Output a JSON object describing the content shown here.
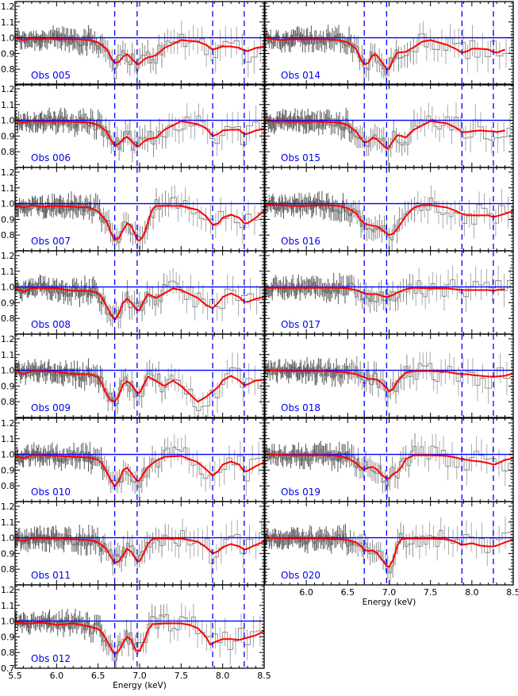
{
  "chart_data": {
    "type": "line",
    "title": "",
    "layout": "multi-panel grid: left column 8 panels, right column 7 panels, shared x axis per column",
    "xlabel": "Energy (keV)",
    "ylabel": "",
    "xlim": [
      5.5,
      8.5
    ],
    "ylim": [
      0.7,
      1.23
    ],
    "x_ticks": [
      "5.5",
      "6.0",
      "6.5",
      "7.0",
      "7.5",
      "8.0",
      "8.5"
    ],
    "x_ticks_right": [
      "6.0",
      "6.5",
      "7.0",
      "7.5",
      "8.0",
      "8.5"
    ],
    "y_ticks": [
      "0.7",
      "0.8",
      "0.9",
      "1.0",
      "1.1",
      "1.2"
    ],
    "reference_line": {
      "y": 1.0,
      "color": "#0000ff"
    },
    "dashed_lines_keV": [
      6.7,
      6.97,
      7.88,
      8.26
    ],
    "colors": {
      "model": "#ff0000",
      "reference": "#0000ff",
      "dashed": "#0000ff",
      "data": "#888888",
      "label": "#0000ee"
    },
    "series_legend": [
      "data (grey histogram with error bars)",
      "model (red)",
      "unity continuum (blue)"
    ],
    "panels": [
      {
        "col": 0,
        "row": 0,
        "label": "Obs 005",
        "model_x": [
          5.5,
          5.6,
          5.7,
          5.8,
          5.9,
          6.0,
          6.2,
          6.4,
          6.5,
          6.6,
          6.65,
          6.7,
          6.75,
          6.8,
          6.85,
          6.9,
          6.97,
          7.0,
          7.05,
          7.1,
          7.15,
          7.2,
          7.3,
          7.5,
          7.7,
          7.8,
          7.88,
          7.95,
          8.0,
          8.1,
          8.2,
          8.26,
          8.3,
          8.4,
          8.5
        ],
        "model_y": [
          1.0,
          0.985,
          0.995,
          0.99,
          0.995,
          0.99,
          0.99,
          0.985,
          0.97,
          0.93,
          0.88,
          0.84,
          0.845,
          0.88,
          0.895,
          0.87,
          0.83,
          0.835,
          0.86,
          0.875,
          0.88,
          0.89,
          0.935,
          0.985,
          0.975,
          0.955,
          0.925,
          0.935,
          0.945,
          0.945,
          0.935,
          0.92,
          0.915,
          0.935,
          0.945
        ]
      },
      {
        "col": 0,
        "row": 1,
        "label": "Obs 006",
        "model_x": [
          5.5,
          5.6,
          5.7,
          5.8,
          6.0,
          6.2,
          6.4,
          6.5,
          6.6,
          6.65,
          6.7,
          6.75,
          6.8,
          6.85,
          6.9,
          6.97,
          7.0,
          7.05,
          7.1,
          7.2,
          7.3,
          7.5,
          7.7,
          7.8,
          7.88,
          7.95,
          8.0,
          8.1,
          8.2,
          8.26,
          8.3,
          8.4,
          8.5
        ],
        "model_y": [
          1.0,
          0.985,
          0.995,
          0.99,
          0.99,
          0.99,
          0.985,
          0.97,
          0.93,
          0.88,
          0.84,
          0.85,
          0.88,
          0.895,
          0.87,
          0.83,
          0.84,
          0.865,
          0.88,
          0.89,
          0.94,
          0.995,
          0.975,
          0.95,
          0.9,
          0.915,
          0.935,
          0.94,
          0.94,
          0.91,
          0.915,
          0.935,
          0.945
        ]
      },
      {
        "col": 0,
        "row": 2,
        "label": "Obs 007",
        "model_x": [
          5.5,
          5.6,
          5.7,
          5.8,
          6.0,
          6.2,
          6.4,
          6.5,
          6.6,
          6.65,
          6.7,
          6.75,
          6.8,
          6.85,
          6.9,
          6.97,
          7.0,
          7.05,
          7.1,
          7.15,
          7.2,
          7.5,
          7.7,
          7.8,
          7.88,
          7.95,
          8.0,
          8.1,
          8.2,
          8.26,
          8.3,
          8.4,
          8.5
        ],
        "model_y": [
          0.99,
          0.975,
          0.99,
          0.98,
          0.985,
          0.98,
          0.975,
          0.95,
          0.89,
          0.82,
          0.77,
          0.78,
          0.83,
          0.875,
          0.86,
          0.77,
          0.765,
          0.8,
          0.88,
          0.96,
          0.985,
          0.985,
          0.96,
          0.92,
          0.865,
          0.875,
          0.91,
          0.93,
          0.91,
          0.875,
          0.875,
          0.91,
          0.955
        ]
      },
      {
        "col": 0,
        "row": 3,
        "label": "Obs 008",
        "model_x": [
          5.5,
          5.6,
          5.7,
          5.8,
          6.0,
          6.2,
          6.4,
          6.5,
          6.55,
          6.6,
          6.65,
          6.7,
          6.75,
          6.8,
          6.85,
          6.9,
          6.97,
          7.0,
          7.05,
          7.1,
          7.2,
          7.3,
          7.4,
          7.5,
          7.7,
          7.8,
          7.88,
          7.95,
          8.0,
          8.1,
          8.2,
          8.26,
          8.3,
          8.4,
          8.5
        ],
        "model_y": [
          0.99,
          0.97,
          0.99,
          0.995,
          0.99,
          0.975,
          0.975,
          0.96,
          0.93,
          0.88,
          0.83,
          0.79,
          0.83,
          0.9,
          0.925,
          0.9,
          0.85,
          0.855,
          0.91,
          0.955,
          0.93,
          0.96,
          0.99,
          0.98,
          0.93,
          0.885,
          0.865,
          0.9,
          0.935,
          0.96,
          0.935,
          0.905,
          0.905,
          0.925,
          0.935
        ]
      },
      {
        "col": 0,
        "row": 4,
        "label": "Obs 009",
        "model_x": [
          5.5,
          5.6,
          5.7,
          5.8,
          6.0,
          6.2,
          6.4,
          6.5,
          6.55,
          6.6,
          6.65,
          6.7,
          6.75,
          6.8,
          6.85,
          6.9,
          6.97,
          7.0,
          7.05,
          7.1,
          7.2,
          7.3,
          7.4,
          7.5,
          7.6,
          7.7,
          7.8,
          7.88,
          7.95,
          8.0,
          8.1,
          8.2,
          8.26,
          8.3,
          8.4,
          8.5
        ],
        "model_y": [
          1.0,
          0.975,
          0.995,
          0.995,
          0.99,
          0.975,
          0.975,
          0.955,
          0.91,
          0.85,
          0.81,
          0.8,
          0.84,
          0.91,
          0.93,
          0.91,
          0.855,
          0.855,
          0.91,
          0.96,
          0.93,
          0.9,
          0.935,
          0.9,
          0.85,
          0.8,
          0.83,
          0.865,
          0.895,
          0.935,
          0.965,
          0.935,
          0.905,
          0.91,
          0.935,
          0.94
        ]
      },
      {
        "col": 0,
        "row": 5,
        "label": "Obs 010",
        "model_x": [
          5.5,
          5.6,
          5.7,
          5.8,
          6.0,
          6.2,
          6.4,
          6.5,
          6.55,
          6.6,
          6.65,
          6.7,
          6.75,
          6.8,
          6.85,
          6.9,
          6.97,
          7.0,
          7.05,
          7.1,
          7.2,
          7.3,
          7.5,
          7.7,
          7.8,
          7.88,
          7.95,
          8.0,
          8.1,
          8.2,
          8.26,
          8.3,
          8.4,
          8.5
        ],
        "model_y": [
          0.995,
          0.975,
          0.995,
          0.995,
          0.99,
          0.985,
          0.98,
          0.965,
          0.94,
          0.89,
          0.84,
          0.795,
          0.83,
          0.9,
          0.915,
          0.88,
          0.83,
          0.835,
          0.88,
          0.92,
          0.96,
          0.985,
          0.99,
          0.95,
          0.905,
          0.865,
          0.895,
          0.935,
          0.955,
          0.935,
          0.89,
          0.895,
          0.925,
          0.95
        ]
      },
      {
        "col": 0,
        "row": 6,
        "label": "Obs 011",
        "model_x": [
          5.5,
          5.6,
          5.7,
          5.8,
          6.0,
          6.2,
          6.4,
          6.5,
          6.6,
          6.65,
          6.7,
          6.75,
          6.8,
          6.85,
          6.9,
          6.97,
          7.0,
          7.05,
          7.1,
          7.15,
          7.2,
          7.5,
          7.7,
          7.8,
          7.88,
          7.95,
          8.0,
          8.1,
          8.2,
          8.26,
          8.3,
          8.4,
          8.5
        ],
        "model_y": [
          0.995,
          0.98,
          0.995,
          0.995,
          0.995,
          0.99,
          0.985,
          0.97,
          0.93,
          0.88,
          0.84,
          0.85,
          0.89,
          0.93,
          0.91,
          0.85,
          0.85,
          0.9,
          0.96,
          0.99,
          0.995,
          0.995,
          0.975,
          0.94,
          0.9,
          0.915,
          0.94,
          0.96,
          0.945,
          0.925,
          0.93,
          0.955,
          0.975
        ]
      },
      {
        "col": 0,
        "row": 7,
        "label": "Obs 012",
        "model_x": [
          5.5,
          5.6,
          5.7,
          5.8,
          5.9,
          6.0,
          6.2,
          6.4,
          6.5,
          6.55,
          6.6,
          6.65,
          6.7,
          6.75,
          6.8,
          6.85,
          6.9,
          6.95,
          7.0,
          7.05,
          7.1,
          7.15,
          7.3,
          7.5,
          7.6,
          7.7,
          7.8,
          7.85,
          7.9,
          8.0,
          8.1,
          8.2,
          8.3,
          8.4,
          8.5
        ],
        "model_y": [
          0.995,
          0.985,
          0.985,
          0.99,
          0.985,
          0.975,
          0.985,
          0.965,
          0.95,
          0.925,
          0.88,
          0.83,
          0.79,
          0.81,
          0.86,
          0.9,
          0.88,
          0.815,
          0.81,
          0.865,
          0.94,
          0.98,
          0.985,
          0.985,
          0.975,
          0.955,
          0.9,
          0.85,
          0.865,
          0.885,
          0.885,
          0.88,
          0.895,
          0.91,
          0.935
        ]
      },
      {
        "col": 1,
        "row": 0,
        "label": "Obs 014",
        "model_x": [
          5.5,
          5.6,
          5.7,
          5.8,
          6.0,
          6.2,
          6.4,
          6.5,
          6.6,
          6.65,
          6.7,
          6.75,
          6.8,
          6.85,
          6.9,
          6.97,
          7.0,
          7.05,
          7.1,
          7.2,
          7.3,
          7.4,
          7.5,
          7.6,
          7.7,
          7.8,
          7.88,
          7.95,
          8.0,
          8.1,
          8.2,
          8.26,
          8.3,
          8.4
        ],
        "model_y": [
          1.0,
          0.99,
          0.985,
          0.99,
          0.99,
          0.99,
          0.985,
          0.97,
          0.93,
          0.87,
          0.83,
          0.84,
          0.89,
          0.89,
          0.855,
          0.8,
          0.8,
          0.86,
          0.905,
          0.91,
          0.94,
          0.975,
          0.985,
          0.97,
          0.955,
          0.93,
          0.905,
          0.915,
          0.93,
          0.93,
          0.925,
          0.91,
          0.905,
          0.925
        ]
      },
      {
        "col": 1,
        "row": 1,
        "label": "Obs 015",
        "model_x": [
          5.5,
          5.6,
          5.7,
          5.8,
          6.0,
          6.2,
          6.4,
          6.5,
          6.6,
          6.65,
          6.7,
          6.75,
          6.8,
          6.85,
          6.9,
          6.97,
          7.0,
          7.05,
          7.1,
          7.15,
          7.2,
          7.3,
          7.5,
          7.7,
          7.8,
          7.88,
          7.95,
          8.0,
          8.1,
          8.2,
          8.26,
          8.3,
          8.4
        ],
        "model_y": [
          1.0,
          0.99,
          0.995,
          0.99,
          0.99,
          0.99,
          0.985,
          0.97,
          0.93,
          0.89,
          0.86,
          0.865,
          0.89,
          0.88,
          0.855,
          0.82,
          0.83,
          0.87,
          0.905,
          0.9,
          0.89,
          0.94,
          0.995,
          0.98,
          0.955,
          0.925,
          0.925,
          0.93,
          0.935,
          0.93,
          0.93,
          0.925,
          0.935
        ]
      },
      {
        "col": 1,
        "row": 2,
        "label": "Obs 016",
        "model_x": [
          5.5,
          5.6,
          5.7,
          5.8,
          6.0,
          6.2,
          6.4,
          6.5,
          6.6,
          6.65,
          6.7,
          6.75,
          6.8,
          6.85,
          6.9,
          6.97,
          7.0,
          7.05,
          7.1,
          7.2,
          7.3,
          7.4,
          7.5,
          7.7,
          7.8,
          7.88,
          7.95,
          8.0,
          8.1,
          8.2,
          8.26,
          8.3,
          8.4,
          8.5
        ],
        "model_y": [
          0.995,
          0.99,
          0.99,
          0.985,
          0.985,
          0.99,
          0.985,
          0.97,
          0.94,
          0.9,
          0.875,
          0.865,
          0.86,
          0.855,
          0.84,
          0.81,
          0.8,
          0.81,
          0.84,
          0.92,
          0.975,
          0.99,
          0.99,
          0.975,
          0.955,
          0.935,
          0.925,
          0.925,
          0.925,
          0.925,
          0.915,
          0.92,
          0.935,
          0.955
        ]
      },
      {
        "col": 1,
        "row": 3,
        "label": "Obs 017",
        "model_x": [
          5.5,
          5.8,
          6.0,
          6.2,
          6.4,
          6.5,
          6.6,
          6.65,
          6.7,
          6.75,
          6.8,
          6.85,
          6.9,
          6.97,
          7.0,
          7.05,
          7.1,
          7.2,
          7.3,
          7.5,
          7.7,
          7.8,
          7.88,
          7.95,
          8.0,
          8.1,
          8.2,
          8.26,
          8.3,
          8.4
        ],
        "model_y": [
          0.995,
          0.995,
          0.995,
          0.995,
          0.995,
          0.99,
          0.98,
          0.97,
          0.96,
          0.955,
          0.955,
          0.955,
          0.945,
          0.935,
          0.94,
          0.95,
          0.965,
          0.985,
          0.995,
          0.99,
          0.99,
          0.985,
          0.98,
          0.98,
          0.98,
          0.98,
          0.98,
          0.975,
          0.98,
          0.985
        ]
      },
      {
        "col": 1,
        "row": 4,
        "label": "Obs 018",
        "model_x": [
          5.5,
          5.8,
          6.0,
          6.2,
          6.4,
          6.5,
          6.6,
          6.65,
          6.7,
          6.75,
          6.8,
          6.85,
          6.9,
          6.97,
          7.0,
          7.05,
          7.1,
          7.2,
          7.3,
          7.5,
          7.7,
          7.8,
          7.88,
          7.95,
          8.0,
          8.1,
          8.2,
          8.26,
          8.3,
          8.4,
          8.5
        ],
        "model_y": [
          1.0,
          0.995,
          0.995,
          0.995,
          0.99,
          0.985,
          0.975,
          0.965,
          0.955,
          0.945,
          0.945,
          0.94,
          0.925,
          0.885,
          0.865,
          0.88,
          0.93,
          0.985,
          0.995,
          0.995,
          0.99,
          0.98,
          0.975,
          0.975,
          0.97,
          0.965,
          0.96,
          0.96,
          0.96,
          0.965,
          0.98
        ]
      },
      {
        "col": 1,
        "row": 5,
        "label": "Obs 019",
        "model_x": [
          5.5,
          5.8,
          6.0,
          6.2,
          6.4,
          6.5,
          6.6,
          6.65,
          6.7,
          6.75,
          6.8,
          6.85,
          6.9,
          6.97,
          7.0,
          7.05,
          7.1,
          7.15,
          7.2,
          7.3,
          7.5,
          7.7,
          7.8,
          7.88,
          7.95,
          8.0,
          8.1,
          8.2,
          8.26,
          8.3,
          8.4,
          8.5
        ],
        "model_y": [
          1.0,
          0.995,
          0.995,
          0.995,
          0.99,
          0.975,
          0.945,
          0.92,
          0.905,
          0.915,
          0.92,
          0.905,
          0.875,
          0.845,
          0.85,
          0.875,
          0.89,
          0.92,
          0.97,
          0.995,
          0.995,
          0.99,
          0.98,
          0.97,
          0.965,
          0.96,
          0.955,
          0.945,
          0.935,
          0.94,
          0.965,
          0.975
        ]
      },
      {
        "col": 1,
        "row": 6,
        "label": "Obs 020",
        "model_x": [
          5.5,
          5.8,
          6.0,
          6.2,
          6.4,
          6.5,
          6.6,
          6.65,
          6.7,
          6.75,
          6.8,
          6.85,
          6.9,
          6.97,
          7.0,
          7.05,
          7.1,
          7.15,
          7.2,
          7.3,
          7.5,
          7.7,
          7.8,
          7.88,
          7.95,
          8.0,
          8.1,
          8.2,
          8.26,
          8.3,
          8.4,
          8.5
        ],
        "model_y": [
          1.0,
          0.995,
          0.995,
          0.995,
          0.99,
          0.985,
          0.97,
          0.95,
          0.925,
          0.915,
          0.92,
          0.905,
          0.87,
          0.82,
          0.815,
          0.86,
          0.95,
          0.99,
          0.995,
          0.995,
          0.995,
          0.99,
          0.975,
          0.955,
          0.96,
          0.965,
          0.95,
          0.945,
          0.945,
          0.95,
          0.97,
          0.99
        ]
      }
    ]
  }
}
